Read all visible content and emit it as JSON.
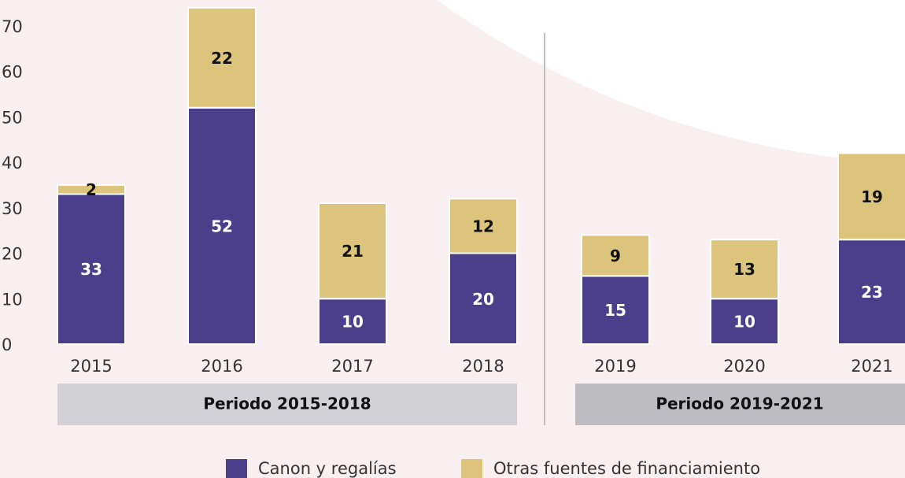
{
  "chart_data": {
    "type": "bar",
    "stacked": true,
    "categories": [
      "2015",
      "2016",
      "2017",
      "2018",
      "2019",
      "2020",
      "2021"
    ],
    "series": [
      {
        "name": "Canon y regalías",
        "color": "#4b3f8c",
        "values": [
          33,
          52,
          10,
          20,
          15,
          10,
          23
        ]
      },
      {
        "name": "Otras fuentes de financiamiento",
        "color": "#dcc47c",
        "values": [
          2,
          22,
          21,
          12,
          9,
          13,
          19
        ]
      }
    ],
    "ylim": [
      0,
      75
    ],
    "yticks": [
      0,
      10,
      20,
      30,
      40,
      50,
      60,
      70
    ],
    "annotations": [
      "Periodo 2015-2018",
      "Periodo 2019-2021"
    ],
    "legend": "bottom"
  }
}
